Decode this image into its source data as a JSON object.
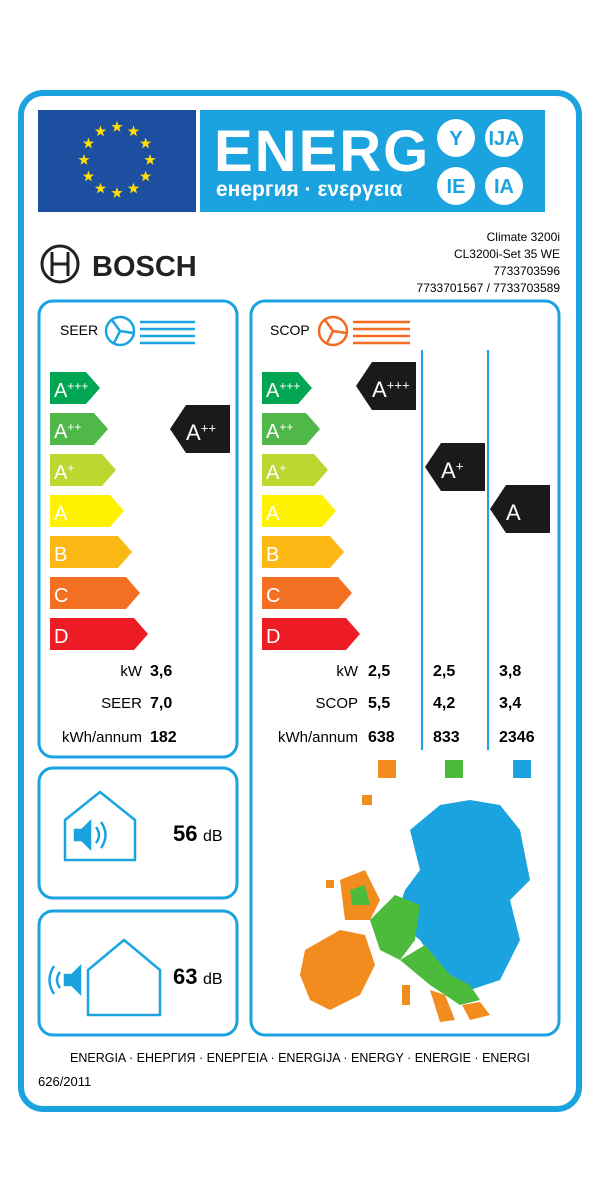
{
  "header": {
    "energy_title": "ENERG",
    "subtitle": "енергия · ενεργεια",
    "suffixes": [
      "Y",
      "IJA",
      "IE",
      "IA"
    ]
  },
  "supplier": {
    "name": "BOSCH",
    "model_lines": [
      "Climate 3200i",
      "CL3200i-Set 35 WE",
      "7733703596",
      "7733701567 / 7733703589"
    ]
  },
  "classes": [
    {
      "letter": "A",
      "sup": "+++"
    },
    {
      "letter": "A",
      "sup": "++"
    },
    {
      "letter": "A",
      "sup": "+"
    },
    {
      "letter": "A",
      "sup": ""
    },
    {
      "letter": "B",
      "sup": ""
    },
    {
      "letter": "C",
      "sup": ""
    },
    {
      "letter": "D",
      "sup": ""
    }
  ],
  "seer": {
    "label": "SEER",
    "class": {
      "letter": "A",
      "sup": "++"
    },
    "rows": [
      {
        "label": "kW",
        "values": [
          "3,6"
        ]
      },
      {
        "label": "SEER",
        "values": [
          "7,0"
        ]
      },
      {
        "label": "kWh/annum",
        "values": [
          "182"
        ]
      }
    ]
  },
  "scop": {
    "label": "SCOP",
    "classes": [
      {
        "letter": "A",
        "sup": "+++"
      },
      {
        "letter": "A",
        "sup": "+"
      },
      {
        "letter": "A",
        "sup": ""
      }
    ],
    "rows": [
      {
        "label": "kW",
        "values": [
          "2,5",
          "2,5",
          "3,8"
        ]
      },
      {
        "label": "SCOP",
        "values": [
          "5,5",
          "4,2",
          "3,4"
        ]
      },
      {
        "label": "kWh/annum",
        "values": [
          "638",
          "833",
          "2346"
        ]
      }
    ]
  },
  "noise": {
    "indoor": {
      "value": "56",
      "unit": "dB"
    },
    "outdoor": {
      "value": "63",
      "unit": "dB"
    }
  },
  "footer": {
    "languages": "ENERGIA · ЕНЕРГИЯ · ΕΝΕΡΓΕΙΑ · ENERGIJA · ENERGY · ENERGIE · ENERGI",
    "regulation": "626/2011"
  }
}
